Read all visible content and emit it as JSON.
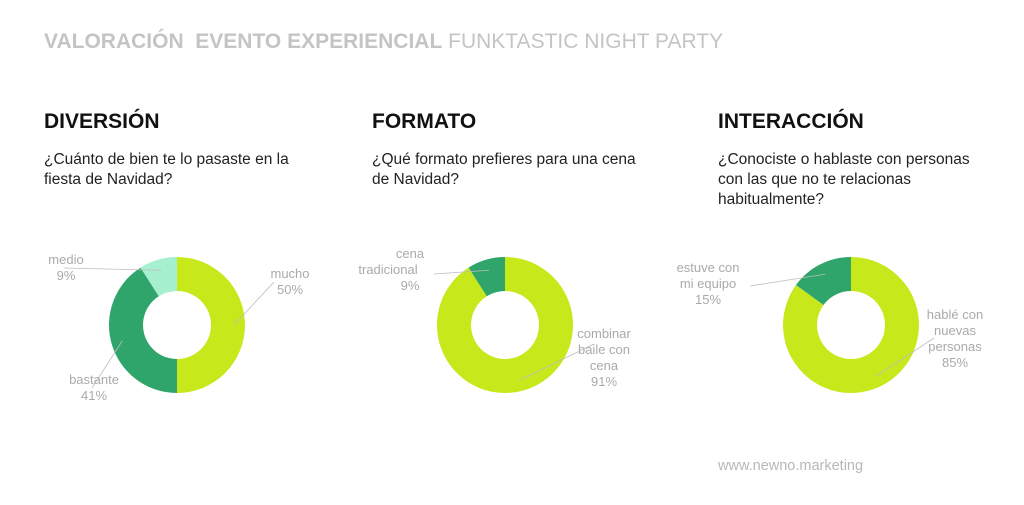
{
  "header": {
    "part1": "VALORACIÓN",
    "part2": "EVENTO EXPERIENCIAL",
    "part3": "FUNKTASTIC NIGHT PARTY"
  },
  "footer": {
    "url": "www.newno.marketing"
  },
  "colors": {
    "light_green": "#c7e91c",
    "dark_green": "#2fa56b",
    "mint": "#a6efcf",
    "label_gray": "#aaaaaa"
  },
  "chart_data": [
    {
      "type": "pie",
      "title": "DIVERSIÓN",
      "subtitle": "¿Cuánto de bien te lo pasaste en la fiesta de Navidad?",
      "donut": true,
      "slices": [
        {
          "label": "mucho",
          "value": 50,
          "display": "50%",
          "color": "#c7e91c"
        },
        {
          "label": "bastante",
          "value": 41,
          "display": "41%",
          "color": "#2fa56b"
        },
        {
          "label": "medio",
          "value": 9,
          "display": "9%",
          "color": "#a6efcf"
        }
      ]
    },
    {
      "type": "pie",
      "title": "FORMATO",
      "subtitle": "¿Qué formato prefieres para una cena de Navidad?",
      "donut": true,
      "slices": [
        {
          "label": "combinar baile con cena",
          "value": 91,
          "display": "91%",
          "color": "#c7e91c"
        },
        {
          "label": "cena tradicional",
          "value": 9,
          "display": "9%",
          "color": "#2fa56b"
        }
      ]
    },
    {
      "type": "pie",
      "title": "INTERACCIÓN",
      "subtitle": "¿Conociste o hablaste con personas con las que no te relacionas habitualmente?",
      "donut": true,
      "slices": [
        {
          "label": "hablé con nuevas personas",
          "value": 85,
          "display": "85%",
          "color": "#c7e91c"
        },
        {
          "label": "estuve con mi equipo",
          "value": 15,
          "display": "15%",
          "color": "#2fa56b"
        }
      ]
    }
  ]
}
